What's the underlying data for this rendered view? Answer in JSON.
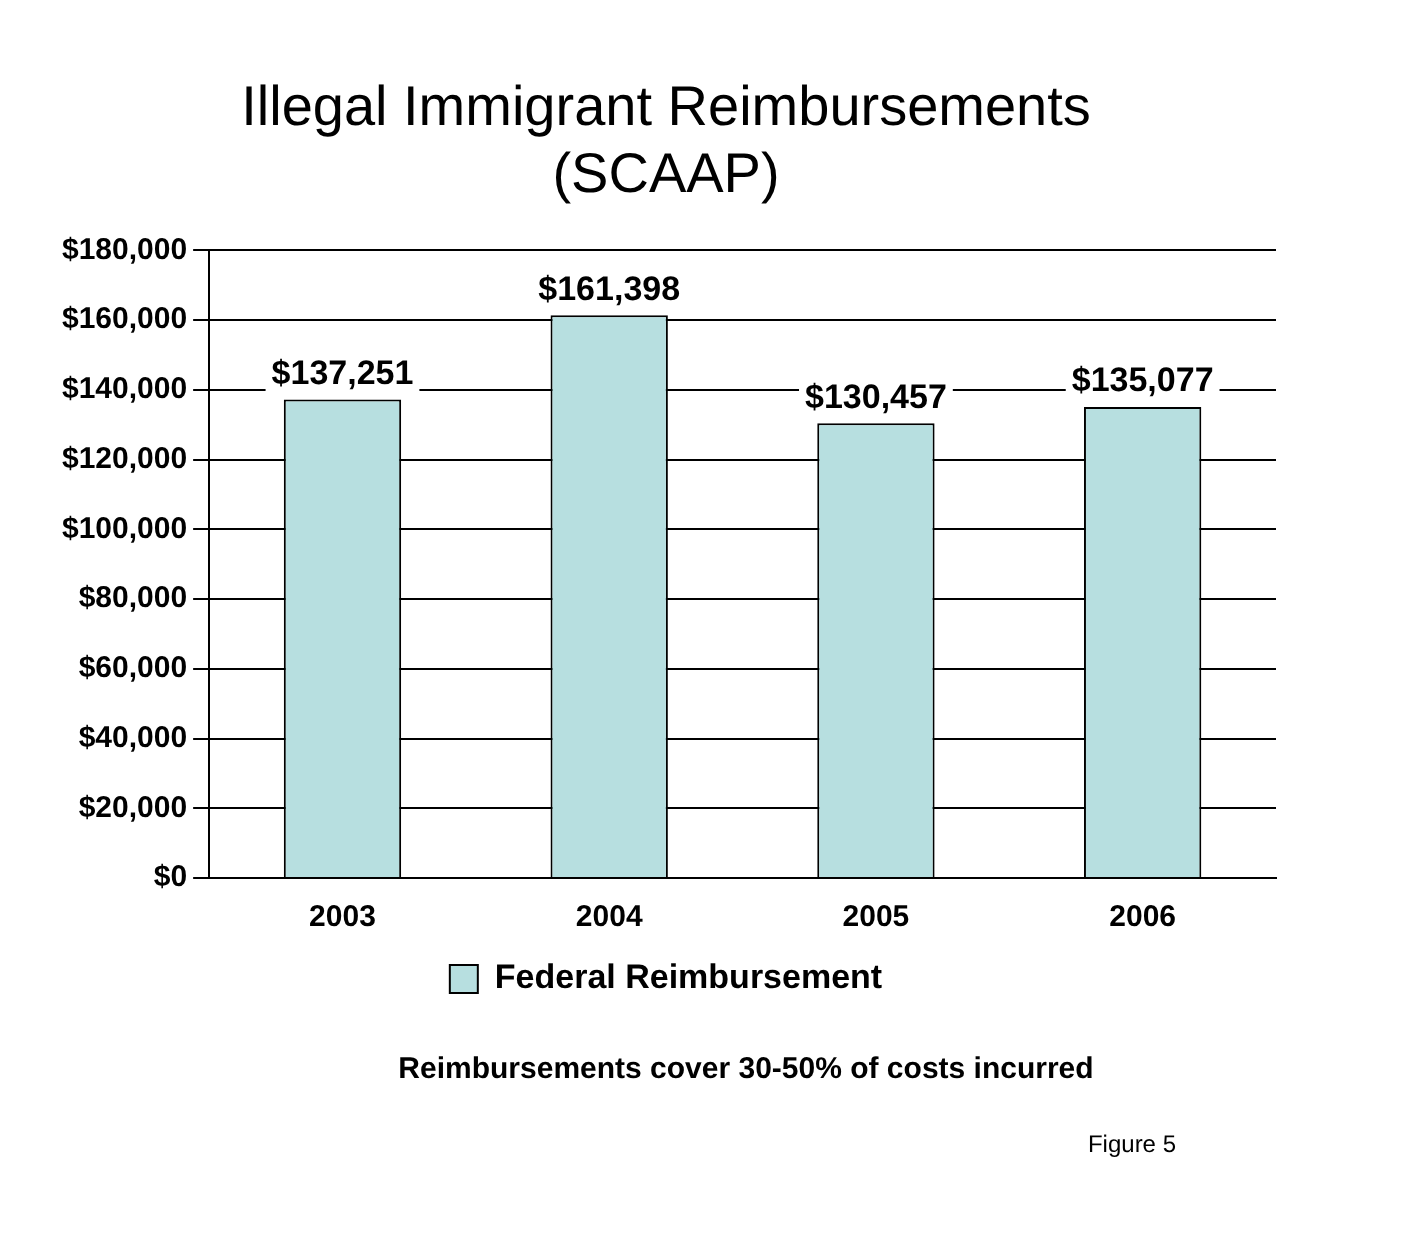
{
  "chart_data": {
    "type": "bar",
    "title": [
      "Illegal Immigrant Reimbursements",
      "(SCAAP)"
    ],
    "categories": [
      "2003",
      "2004",
      "2005",
      "2006"
    ],
    "series": [
      {
        "name": "Federal Reimbursement",
        "color": "#b7dfe0",
        "values": [
          137251,
          161398,
          130457,
          135077
        ],
        "value_labels": [
          "$137,251",
          "$161,398",
          "$130,457",
          "$135,077"
        ]
      }
    ],
    "ylim": [
      0,
      180000
    ],
    "yticks": [
      {
        "value": 0,
        "label": "$0"
      },
      {
        "value": 20000,
        "label": "$20,000"
      },
      {
        "value": 40000,
        "label": "$40,000"
      },
      {
        "value": 60000,
        "label": "$60,000"
      },
      {
        "value": 80000,
        "label": "$80,000"
      },
      {
        "value": 100000,
        "label": "$100,000"
      },
      {
        "value": 120000,
        "label": "$120,000"
      },
      {
        "value": 140000,
        "label": "$140,000"
      },
      {
        "value": 160000,
        "label": "$160,000"
      },
      {
        "value": 180000,
        "label": "$180,000"
      }
    ],
    "grid": "y",
    "legend": "bottom",
    "annotations": [
      "Reimbursements cover 30-50% of costs incurred",
      "Figure 5"
    ]
  }
}
